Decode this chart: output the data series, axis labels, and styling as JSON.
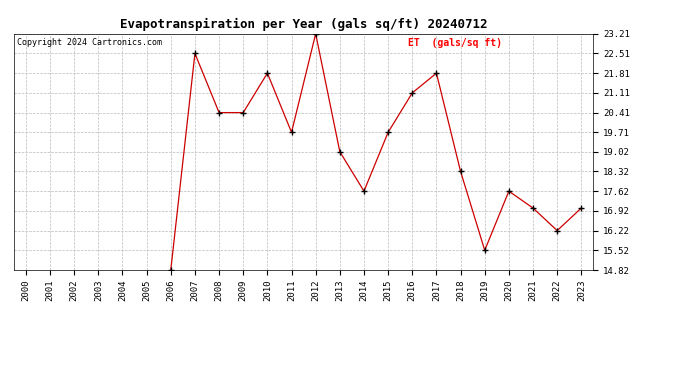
{
  "title": "Evapotranspiration per Year (gals sq/ft) 20240712",
  "copyright": "Copyright 2024 Cartronics.com",
  "legend_label": "ET  (gals/sq ft)",
  "years": [
    2000,
    2001,
    2002,
    2003,
    2004,
    2005,
    2006,
    2007,
    2008,
    2009,
    2010,
    2011,
    2012,
    2013,
    2014,
    2015,
    2016,
    2017,
    2018,
    2019,
    2020,
    2021,
    2022,
    2023
  ],
  "values": [
    null,
    null,
    null,
    null,
    null,
    null,
    14.82,
    22.51,
    20.41,
    20.41,
    21.81,
    19.71,
    23.21,
    19.02,
    17.62,
    19.71,
    21.11,
    21.81,
    18.32,
    15.52,
    17.62,
    17.02,
    16.22,
    17.02
  ],
  "yticks": [
    14.82,
    15.52,
    16.22,
    16.92,
    17.62,
    18.32,
    19.02,
    19.71,
    20.41,
    21.11,
    21.81,
    22.51,
    23.21
  ],
  "ylim": [
    14.82,
    23.21
  ],
  "line_color": "#cc0000",
  "marker": "+",
  "marker_color": "#000000",
  "bg_color": "#ffffff",
  "grid_color": "#bbbbbb",
  "title_fontsize": 9,
  "copyright_fontsize": 6,
  "legend_fontsize": 7,
  "axis_tick_fontsize": 6.5
}
